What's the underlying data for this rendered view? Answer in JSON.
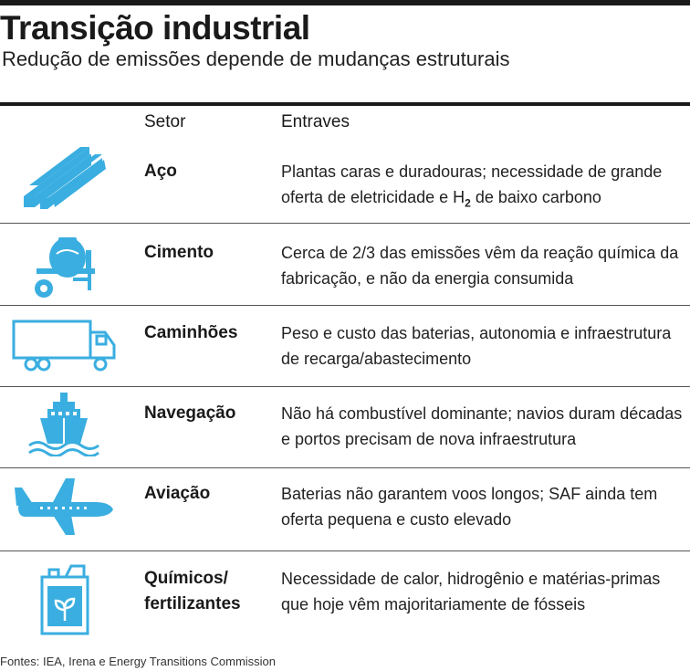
{
  "header": {
    "title": "Transição industrial",
    "subtitle": "Redução de emissões depende de mudanças estruturais"
  },
  "table": {
    "columns": [
      "Setor",
      "Entraves"
    ],
    "rows": [
      {
        "sector": "Aço",
        "icon": "steel-beams-icon",
        "obstacle_pre": "Plantas caras e duradouras; necessidade de grande oferta de eletricidade e H",
        "obstacle_sub": "2",
        "obstacle_post": " de baixo carbono"
      },
      {
        "sector": "Cimento",
        "icon": "cement-mixer-icon",
        "obstacle": "Cerca de 2/3 das emissões vêm da reação química da fabricação, e não da energia consumida"
      },
      {
        "sector": "Caminhões",
        "icon": "truck-icon",
        "obstacle": "Peso e custo das baterias, autonomia e infraestrutura de recarga/abastecimento"
      },
      {
        "sector": "Navegação",
        "icon": "ship-icon",
        "obstacle": "Não há combustível dominante; navios duram décadas e portos precisam de nova infraestrutura"
      },
      {
        "sector": "Aviação",
        "icon": "airplane-icon",
        "obstacle": "Baterias não garantem voos longos; SAF ainda tem oferta pequena e custo elevado"
      },
      {
        "sector_line1": "Químicos/",
        "sector_line2": "fertilizantes",
        "icon": "chemical-canister-icon",
        "obstacle": "Necessidade de calor, hidrogênio e matérias-primas que hoje vêm majoritariamente de fósseis"
      }
    ]
  },
  "footer": {
    "source": "Fontes: IEA, Irena e Energy Transitions Commission"
  },
  "colors": {
    "icon_fill": "#3aaee0",
    "rule": "#1a1a1a"
  }
}
